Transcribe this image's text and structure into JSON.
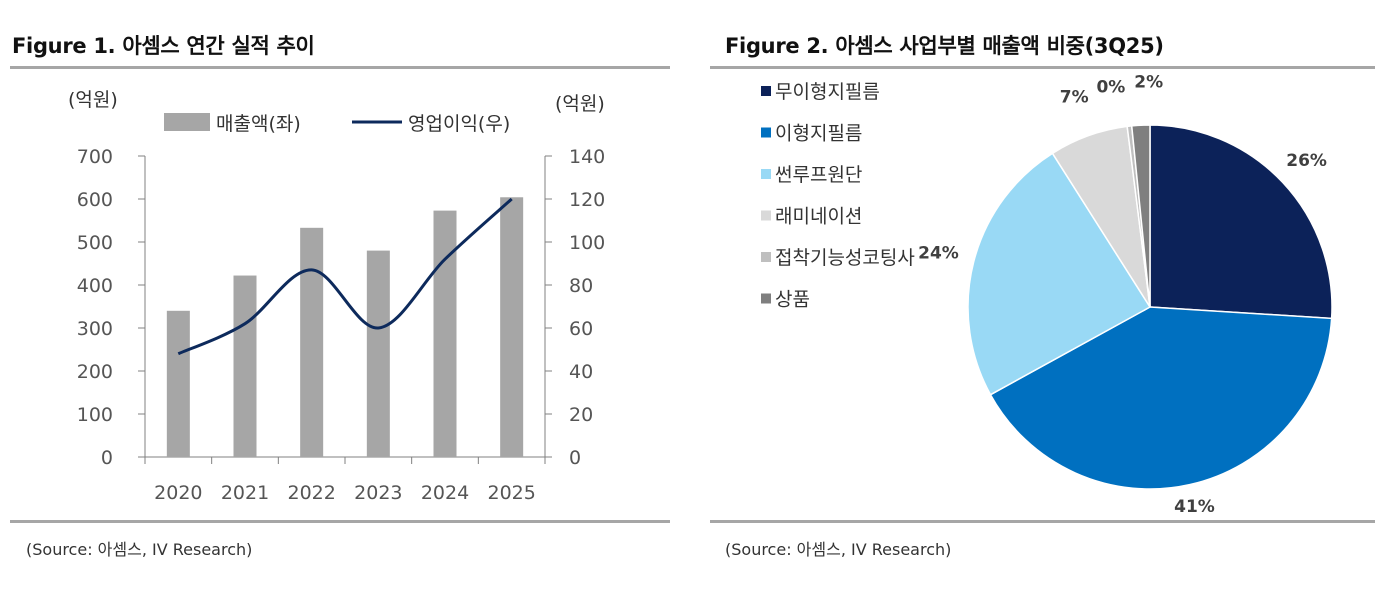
{
  "figures": [
    {
      "title": "Figure 1. 아셈스 연간 실적 추이",
      "source": "(Source: 아셈스, IV Research)"
    },
    {
      "title": "Figure 2.  아셈스 사업부별 매출액 비중(3Q25)",
      "source": "(Source: 아셈스, IV Research)"
    }
  ],
  "chart_data": [
    {
      "type": "bar",
      "title": "아셈스 연간 실적 추이",
      "categories": [
        "2020",
        "2021",
        "2022",
        "2023",
        "2024",
        "2025"
      ],
      "series": [
        {
          "name": "매출액(좌)",
          "kind": "bar",
          "axis": "left",
          "color": "#a6a6a6",
          "values": [
            340,
            422,
            533,
            480,
            573,
            604
          ]
        },
        {
          "name": "영업이익(우)",
          "kind": "line",
          "axis": "right",
          "color": "#0d2a5c",
          "values": [
            48,
            62,
            87,
            60,
            92,
            120
          ]
        }
      ],
      "y_left": {
        "label": "(억원)",
        "min": 0,
        "max": 700,
        "ticks": [
          0,
          100,
          200,
          300,
          400,
          500,
          600,
          700
        ]
      },
      "y_right": {
        "label": "(억원)",
        "min": 0,
        "max": 140,
        "ticks": [
          0,
          20,
          40,
          60,
          80,
          100,
          120,
          140
        ]
      },
      "legend_position": "top",
      "grid": false
    },
    {
      "type": "pie",
      "title": "아셈스 사업부별 매출액 비중(3Q25)",
      "categories": [
        "무이형지필름",
        "이형지필름",
        "썬루프원단",
        "래미네이션",
        "접착기능성코팅사",
        "상품"
      ],
      "values": [
        26,
        41,
        24,
        7,
        0.4,
        1.6
      ],
      "labels": [
        "26%",
        "41%",
        "24%",
        "7%",
        "0%",
        "2%"
      ],
      "colors": [
        "#0c2259",
        "#0070c0",
        "#99d9f5",
        "#d9d9d9",
        "#bfbfbf",
        "#7f7f7f"
      ],
      "legend_position": "left"
    }
  ]
}
